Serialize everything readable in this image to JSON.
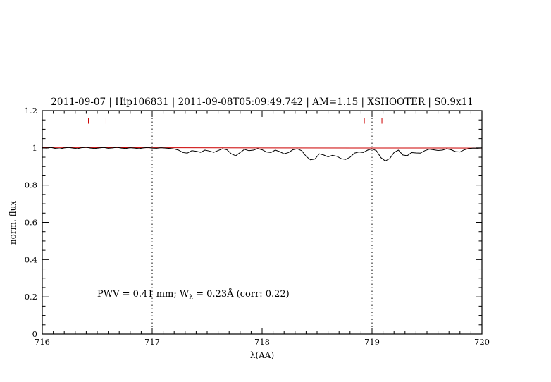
{
  "page": {
    "background": "#ffffff"
  },
  "colors": {
    "title_blue": "#0000cd",
    "annotation_blue": "#0000cd",
    "spectrum_black": "#000000",
    "model_red": "#cc0000",
    "marker_red": "#cc0000",
    "axis_black": "#000000"
  },
  "chart_data": {
    "type": "line",
    "title": "2011-09-07 | Hip106831 | 2011-09-08T05:09:49.742 | AM=1.15 | XSHOOTER | S0.9x11",
    "xlabel": "λ(AA)",
    "ylabel": "norm. flux",
    "xlim": [
      716,
      720
    ],
    "ylim": [
      0,
      1.2
    ],
    "grid": false,
    "legend": "none",
    "xticks": {
      "major": [
        716,
        717,
        718,
        719,
        720
      ],
      "labels": [
        "716",
        "717",
        "718",
        "719",
        "720"
      ],
      "minor_step": 0.1
    },
    "yticks": {
      "major": [
        0,
        0.2,
        0.4,
        0.6,
        0.8,
        1,
        1.2
      ],
      "labels": [
        "0",
        "0.2",
        "0.4",
        "0.6",
        "0.8",
        "1",
        "1.2"
      ],
      "minor_step": 0.05
    },
    "vlines": {
      "x": [
        717,
        719
      ],
      "style": "dotted",
      "color": "#000000"
    },
    "range_markers": [
      {
        "x1": 716.42,
        "x2": 716.58,
        "y": 1.145,
        "color": "#cc0000"
      },
      {
        "x1": 718.93,
        "x2": 719.09,
        "y": 1.145,
        "color": "#cc0000"
      }
    ],
    "annotation": {
      "pre": "PWV  =  0.41 mm; W",
      "sub": "λ",
      "post": "  =  0.23Å (corr: 0.22)",
      "x": 716.5,
      "y": 0.2,
      "color": "#0000cd"
    },
    "series": [
      {
        "name": "observed spectrum",
        "color": "#000000",
        "points": [
          [
            716.0,
            1.0
          ],
          [
            716.04,
            0.999
          ],
          [
            716.08,
            1.002
          ],
          [
            716.12,
            0.997
          ],
          [
            716.16,
            0.995
          ],
          [
            716.2,
            1.0
          ],
          [
            716.24,
            1.002
          ],
          [
            716.28,
            0.999
          ],
          [
            716.32,
            0.996
          ],
          [
            716.36,
            1.001
          ],
          [
            716.4,
            1.003
          ],
          [
            716.44,
            0.999
          ],
          [
            716.48,
            0.997
          ],
          [
            716.52,
            1.0
          ],
          [
            716.56,
            1.002
          ],
          [
            716.6,
            0.998
          ],
          [
            716.64,
            1.0
          ],
          [
            716.68,
            1.003
          ],
          [
            716.72,
            0.999
          ],
          [
            716.76,
            0.997
          ],
          [
            716.8,
            1.001
          ],
          [
            716.84,
            0.999
          ],
          [
            716.88,
            0.996
          ],
          [
            716.92,
            1.0
          ],
          [
            716.96,
            1.002
          ],
          [
            717.0,
            0.999
          ],
          [
            717.04,
            0.998
          ],
          [
            717.08,
            1.001
          ],
          [
            717.12,
            0.999
          ],
          [
            717.16,
            0.997
          ],
          [
            717.2,
            0.994
          ],
          [
            717.24,
            0.988
          ],
          [
            717.28,
            0.975
          ],
          [
            717.32,
            0.972
          ],
          [
            717.36,
            0.985
          ],
          [
            717.4,
            0.982
          ],
          [
            717.44,
            0.976
          ],
          [
            717.48,
            0.988
          ],
          [
            717.52,
            0.983
          ],
          [
            717.56,
            0.976
          ],
          [
            717.6,
            0.986
          ],
          [
            717.64,
            0.995
          ],
          [
            717.68,
            0.99
          ],
          [
            717.72,
            0.968
          ],
          [
            717.76,
            0.958
          ],
          [
            717.8,
            0.975
          ],
          [
            717.84,
            0.992
          ],
          [
            717.88,
            0.985
          ],
          [
            717.92,
            0.988
          ],
          [
            717.96,
            0.996
          ],
          [
            718.0,
            0.99
          ],
          [
            718.04,
            0.978
          ],
          [
            718.08,
            0.975
          ],
          [
            718.12,
            0.988
          ],
          [
            718.16,
            0.98
          ],
          [
            718.2,
            0.968
          ],
          [
            718.24,
            0.975
          ],
          [
            718.28,
            0.99
          ],
          [
            718.32,
            0.995
          ],
          [
            718.36,
            0.985
          ],
          [
            718.4,
            0.955
          ],
          [
            718.44,
            0.936
          ],
          [
            718.48,
            0.94
          ],
          [
            718.52,
            0.968
          ],
          [
            718.56,
            0.962
          ],
          [
            718.6,
            0.952
          ],
          [
            718.64,
            0.96
          ],
          [
            718.68,
            0.955
          ],
          [
            718.72,
            0.942
          ],
          [
            718.76,
            0.938
          ],
          [
            718.8,
            0.95
          ],
          [
            718.84,
            0.972
          ],
          [
            718.88,
            0.978
          ],
          [
            718.92,
            0.975
          ],
          [
            718.96,
            0.988
          ],
          [
            719.0,
            0.995
          ],
          [
            719.04,
            0.985
          ],
          [
            719.08,
            0.948
          ],
          [
            719.12,
            0.93
          ],
          [
            719.16,
            0.942
          ],
          [
            719.2,
            0.975
          ],
          [
            719.24,
            0.988
          ],
          [
            719.28,
            0.962
          ],
          [
            719.32,
            0.958
          ],
          [
            719.36,
            0.975
          ],
          [
            719.4,
            0.973
          ],
          [
            719.44,
            0.972
          ],
          [
            719.48,
            0.985
          ],
          [
            719.52,
            0.993
          ],
          [
            719.56,
            0.99
          ],
          [
            719.6,
            0.986
          ],
          [
            719.64,
            0.988
          ],
          [
            719.68,
            0.995
          ],
          [
            719.72,
            0.99
          ],
          [
            719.76,
            0.98
          ],
          [
            719.8,
            0.978
          ],
          [
            719.84,
            0.99
          ],
          [
            719.88,
            0.996
          ],
          [
            719.92,
            0.999
          ],
          [
            719.96,
            0.998
          ],
          [
            720.0,
            1.0
          ]
        ]
      },
      {
        "name": "model continuum",
        "color": "#cc0000",
        "points": [
          [
            716.0,
            1.002
          ],
          [
            717.0,
            1.001
          ],
          [
            718.0,
            1.0
          ],
          [
            719.0,
            0.9995
          ],
          [
            720.0,
            0.999
          ]
        ]
      }
    ]
  }
}
